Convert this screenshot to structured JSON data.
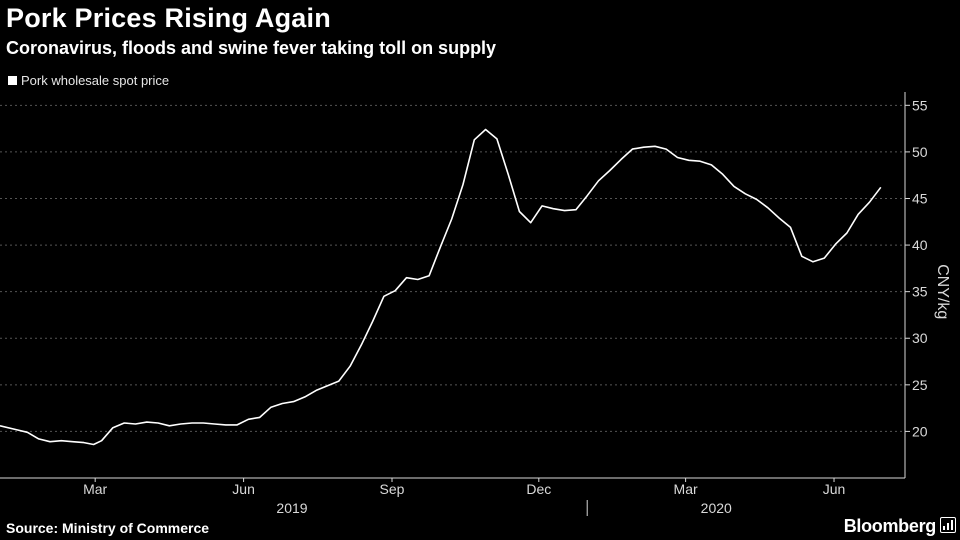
{
  "header": {
    "title": "Pork Prices Rising Again",
    "subtitle": "Coronavirus, floods and swine fever taking toll on supply"
  },
  "footer": {
    "source": "Source: Ministry of Commerce",
    "brand": "Bloomberg"
  },
  "colors": {
    "background": "#000000",
    "line": "#ffffff",
    "grid": "#555555",
    "text": "#ffffff"
  },
  "chart_data": {
    "type": "line",
    "title": "Pork Prices Rising Again",
    "subtitle": "Coronavirus, floods and swine fever taking toll on supply",
    "ylabel": "CNY/kg",
    "xlabel": "",
    "ylim": [
      15,
      56
    ],
    "y_ticks": [
      20,
      25,
      30,
      35,
      40,
      45,
      50,
      55
    ],
    "x_tick_labels": [
      "Mar",
      "Jun",
      "Sep",
      "Dec",
      "Mar",
      "Jun"
    ],
    "x_tick_dates": [
      "2019-03-01",
      "2019-06-01",
      "2019-09-01",
      "2019-12-01",
      "2020-03-01",
      "2020-06-01"
    ],
    "x_year_labels": [
      {
        "label": "2019",
        "date": "2019-07-01"
      },
      {
        "label": "2020",
        "date": "2020-03-20"
      }
    ],
    "grid": "horizontal dashed",
    "legend": "top-left",
    "y_axis_position": "right",
    "series": [
      {
        "name": "Pork wholesale spot price",
        "points": [
          [
            "2019-01-01",
            20.6
          ],
          [
            "2019-01-11",
            20.2
          ],
          [
            "2019-01-18",
            19.9
          ],
          [
            "2019-01-25",
            19.2
          ],
          [
            "2019-02-01",
            18.9
          ],
          [
            "2019-02-08",
            19.0
          ],
          [
            "2019-02-15",
            18.9
          ],
          [
            "2019-02-22",
            18.8
          ],
          [
            "2019-02-28",
            18.6
          ],
          [
            "2019-03-05",
            19.0
          ],
          [
            "2019-03-12",
            20.4
          ],
          [
            "2019-03-19",
            20.9
          ],
          [
            "2019-03-26",
            20.8
          ],
          [
            "2019-04-02",
            21.0
          ],
          [
            "2019-04-09",
            20.9
          ],
          [
            "2019-04-16",
            20.6
          ],
          [
            "2019-04-23",
            20.8
          ],
          [
            "2019-04-30",
            20.9
          ],
          [
            "2019-05-07",
            20.9
          ],
          [
            "2019-05-14",
            20.8
          ],
          [
            "2019-05-21",
            20.7
          ],
          [
            "2019-05-28",
            20.7
          ],
          [
            "2019-06-04",
            21.3
          ],
          [
            "2019-06-11",
            21.5
          ],
          [
            "2019-06-18",
            22.6
          ],
          [
            "2019-06-25",
            23.0
          ],
          [
            "2019-07-02",
            23.2
          ],
          [
            "2019-07-09",
            23.7
          ],
          [
            "2019-07-16",
            24.4
          ],
          [
            "2019-07-23",
            24.9
          ],
          [
            "2019-07-30",
            25.4
          ],
          [
            "2019-08-06",
            27.0
          ],
          [
            "2019-08-13",
            29.3
          ],
          [
            "2019-08-20",
            31.8
          ],
          [
            "2019-08-27",
            34.5
          ],
          [
            "2019-09-03",
            35.1
          ],
          [
            "2019-09-10",
            36.5
          ],
          [
            "2019-09-17",
            36.3
          ],
          [
            "2019-09-24",
            36.7
          ],
          [
            "2019-10-01",
            39.8
          ],
          [
            "2019-10-08",
            42.8
          ],
          [
            "2019-10-15",
            46.5
          ],
          [
            "2019-10-22",
            51.3
          ],
          [
            "2019-10-29",
            52.4
          ],
          [
            "2019-11-05",
            51.4
          ],
          [
            "2019-11-12",
            47.6
          ],
          [
            "2019-11-19",
            43.6
          ],
          [
            "2019-11-26",
            42.4
          ],
          [
            "2019-12-03",
            44.2
          ],
          [
            "2019-12-10",
            43.9
          ],
          [
            "2019-12-17",
            43.7
          ],
          [
            "2019-12-24",
            43.8
          ],
          [
            "2019-12-31",
            45.3
          ],
          [
            "2020-01-07",
            46.9
          ],
          [
            "2020-01-14",
            48.0
          ],
          [
            "2020-01-21",
            49.2
          ],
          [
            "2020-01-28",
            50.3
          ],
          [
            "2020-02-04",
            50.5
          ],
          [
            "2020-02-11",
            50.6
          ],
          [
            "2020-02-18",
            50.3
          ],
          [
            "2020-02-25",
            49.4
          ],
          [
            "2020-03-03",
            49.1
          ],
          [
            "2020-03-10",
            49.0
          ],
          [
            "2020-03-17",
            48.6
          ],
          [
            "2020-03-24",
            47.6
          ],
          [
            "2020-03-31",
            46.3
          ],
          [
            "2020-04-07",
            45.5
          ],
          [
            "2020-04-14",
            44.9
          ],
          [
            "2020-04-21",
            44.0
          ],
          [
            "2020-04-28",
            42.9
          ],
          [
            "2020-05-05",
            41.9
          ],
          [
            "2020-05-12",
            38.8
          ],
          [
            "2020-05-19",
            38.2
          ],
          [
            "2020-05-26",
            38.6
          ],
          [
            "2020-06-02",
            40.1
          ],
          [
            "2020-06-09",
            41.3
          ],
          [
            "2020-06-16",
            43.3
          ],
          [
            "2020-06-23",
            44.6
          ],
          [
            "2020-06-30",
            46.2
          ]
        ]
      }
    ]
  }
}
